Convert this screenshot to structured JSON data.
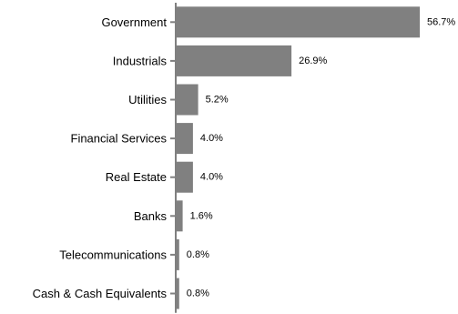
{
  "chart_data": {
    "type": "bar",
    "orientation": "horizontal",
    "categories": [
      "Government",
      "Industrials",
      "Utilities",
      "Financial Services",
      "Real Estate",
      "Banks",
      "Telecommunications",
      "Cash & Cash Equivalents"
    ],
    "values": [
      56.7,
      26.9,
      5.2,
      4.0,
      4.0,
      1.6,
      0.8,
      0.8
    ],
    "value_labels": [
      "56.7%",
      "26.9%",
      "5.2%",
      "4.0%",
      "4.0%",
      "1.6%",
      "0.8%",
      "0.8%"
    ],
    "xlim": [
      0,
      56.7
    ],
    "grid": false,
    "legend": "none",
    "bar_color": "#808080",
    "axis_color": "#808080"
  }
}
